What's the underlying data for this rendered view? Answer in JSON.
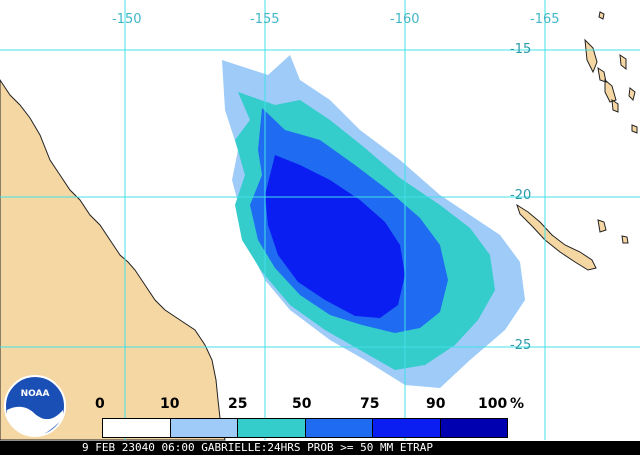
{
  "map": {
    "lon_labels": [
      "-150",
      "-155",
      "-160",
      "-165"
    ],
    "lat_labels": [
      "-15",
      "-20",
      "-25"
    ],
    "colors": {
      "land": "#f5d7a4",
      "ocean": "#ffffff",
      "grid": "#40e0e8",
      "coast": "#222222",
      "band_10_25": "#9ecbf7",
      "band_25_50": "#35cccc",
      "band_50_75": "#1f6cf2",
      "band_75_90": "#0a1ef2",
      "band_90_100": "#0000b0"
    }
  },
  "legend": {
    "ticks": [
      "0",
      "10",
      "25",
      "50",
      "75",
      "90",
      "100"
    ],
    "unit": "%",
    "colors": [
      "#ffffff",
      "#9ecbf7",
      "#35cccc",
      "#1f6cf2",
      "#0a1ef2",
      "#0000b0"
    ]
  },
  "logo": {
    "text": "NOAA"
  },
  "footer": {
    "text": "9 FEB 23040 06:00 GABRIELLE:24HRS PROB >= 50 MM ETRAP"
  }
}
